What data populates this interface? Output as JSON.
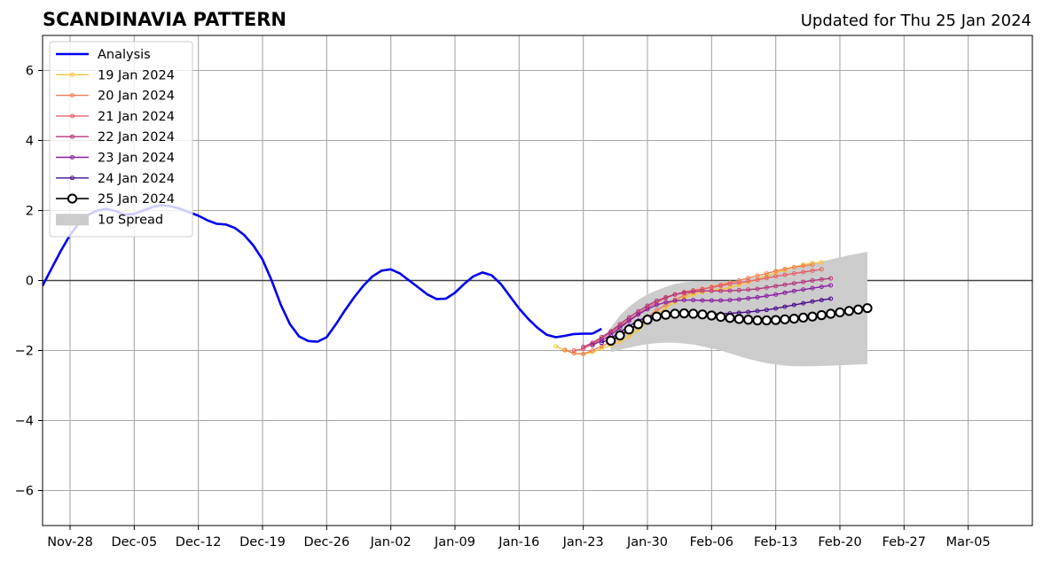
{
  "chart_data": {
    "type": "line",
    "title": "SCANDINAVIA PATTERN",
    "subtitle": "Updated for Thu 25 Jan 2024",
    "xlabel": "",
    "ylabel": "",
    "x_start": "2023-11-25",
    "xlim": [
      "2023-11-25",
      "2024-03-12"
    ],
    "ylim": [
      -7,
      7
    ],
    "y_ticks": [
      -6,
      -4,
      -2,
      0,
      2,
      4,
      6
    ],
    "y_tick_labels": [
      "−6",
      "−4",
      "−2",
      "0",
      "2",
      "4",
      "6"
    ],
    "x_ticks": [
      "2023-11-28",
      "2023-12-05",
      "2023-12-12",
      "2023-12-19",
      "2023-12-26",
      "2024-01-02",
      "2024-01-09",
      "2024-01-16",
      "2024-01-23",
      "2024-01-30",
      "2024-02-06",
      "2024-02-13",
      "2024-02-20",
      "2024-02-27",
      "2024-03-05"
    ],
    "x_tick_labels": [
      "Nov-28",
      "Dec-05",
      "Dec-12",
      "Dec-19",
      "Dec-26",
      "Jan-02",
      "Jan-09",
      "Jan-16",
      "Jan-23",
      "Jan-30",
      "Feb-06",
      "Feb-13",
      "Feb-20",
      "Feb-27",
      "Mar-05"
    ],
    "grid": true,
    "legend_position": "top-left",
    "zero_line": true,
    "analysis": {
      "name": "Analysis",
      "color": "#0000ee",
      "x": [
        "2023-11-25",
        "2023-11-26",
        "2023-11-27",
        "2023-11-28",
        "2023-11-29",
        "2023-11-30",
        "2023-12-01",
        "2023-12-02",
        "2023-12-03",
        "2023-12-04",
        "2023-12-05",
        "2023-12-06",
        "2023-12-07",
        "2023-12-08",
        "2023-12-09",
        "2023-12-10",
        "2023-12-11",
        "2023-12-12",
        "2023-12-13",
        "2023-12-14",
        "2023-12-15",
        "2023-12-16",
        "2023-12-17",
        "2023-12-18",
        "2023-12-19",
        "2023-12-20",
        "2023-12-21",
        "2023-12-22",
        "2023-12-23",
        "2023-12-24",
        "2023-12-25",
        "2023-12-26",
        "2023-12-27",
        "2023-12-28",
        "2023-12-29",
        "2023-12-30",
        "2023-12-31",
        "2024-01-01",
        "2024-01-02",
        "2024-01-03",
        "2024-01-04",
        "2024-01-05",
        "2024-01-06",
        "2024-01-07",
        "2024-01-08",
        "2024-01-09",
        "2024-01-10",
        "2024-01-11",
        "2024-01-12",
        "2024-01-13",
        "2024-01-14",
        "2024-01-15",
        "2024-01-16",
        "2024-01-17",
        "2024-01-18",
        "2024-01-19",
        "2024-01-20",
        "2024-01-21",
        "2024-01-22",
        "2024-01-23",
        "2024-01-24"
      ],
      "values": [
        -0.15,
        0.35,
        0.85,
        1.3,
        1.65,
        1.88,
        2.0,
        2.05,
        1.98,
        1.88,
        1.9,
        2.0,
        2.1,
        2.15,
        2.12,
        2.05,
        1.95,
        1.85,
        1.72,
        1.62,
        1.6,
        1.5,
        1.3,
        1.0,
        0.6,
        0.0,
        -0.7,
        -1.25,
        -1.6,
        -1.73,
        -1.75,
        -1.62,
        -1.25,
        -0.85,
        -0.48,
        -0.15,
        0.12,
        0.28,
        0.32,
        0.2,
        0.0,
        -0.2,
        -0.4,
        -0.53,
        -0.52,
        -0.35,
        -0.1,
        0.12,
        0.23,
        0.15,
        -0.1,
        -0.45,
        -0.8,
        -1.1,
        -1.35,
        -1.55,
        -1.62,
        -1.58,
        -1.53,
        -1.52,
        -1.52
      ]
    },
    "analysis_tail": {
      "x": [
        "2024-01-24",
        "2024-01-25"
      ],
      "values": [
        -1.52,
        -1.38
      ]
    },
    "series": [
      {
        "name": "19 Jan 2024",
        "color": "#f7c53a",
        "x_start": "2024-01-20",
        "values": [
          -1.88,
          -2.0,
          -2.08,
          -2.1,
          -2.05,
          -1.95,
          -1.85,
          -1.75,
          -1.6,
          -1.4,
          -1.2,
          -0.98,
          -0.78,
          -0.62,
          -0.5,
          -0.4,
          -0.33,
          -0.28,
          -0.25,
          -0.2,
          -0.13,
          -0.05,
          0.03,
          0.13,
          0.22,
          0.3,
          0.38,
          0.45,
          0.5,
          0.52
        ]
      },
      {
        "name": "20 Jan 2024",
        "color": "#f07f4f",
        "x_start": "2024-01-21",
        "values": [
          -1.98,
          -2.08,
          -2.1,
          -2.0,
          -1.88,
          -1.75,
          -1.6,
          -1.45,
          -1.25,
          -1.05,
          -0.85,
          -0.7,
          -0.55,
          -0.43,
          -0.33,
          -0.25,
          -0.18,
          -0.12,
          -0.06,
          0.0,
          0.07,
          0.14,
          0.2,
          0.27,
          0.33,
          0.38,
          0.42,
          0.45
        ]
      },
      {
        "name": "21 Jan 2024",
        "color": "#e5606a",
        "x_start": "2024-01-22",
        "values": [
          -2.0,
          -1.95,
          -1.82,
          -1.66,
          -1.48,
          -1.3,
          -1.12,
          -0.95,
          -0.78,
          -0.63,
          -0.5,
          -0.4,
          -0.33,
          -0.28,
          -0.24,
          -0.2,
          -0.15,
          -0.1,
          -0.06,
          -0.02,
          0.02,
          0.07,
          0.12,
          0.16,
          0.2,
          0.24,
          0.28,
          0.32
        ]
      },
      {
        "name": "22 Jan 2024",
        "color": "#b5367a",
        "x_start": "2024-01-23",
        "values": [
          -1.9,
          -1.78,
          -1.62,
          -1.45,
          -1.25,
          -1.05,
          -0.88,
          -0.72,
          -0.58,
          -0.48,
          -0.4,
          -0.35,
          -0.32,
          -0.3,
          -0.3,
          -0.3,
          -0.29,
          -0.28,
          -0.26,
          -0.24,
          -0.2,
          -0.16,
          -0.12,
          -0.08,
          -0.04,
          0.0,
          0.03,
          0.06
        ]
      },
      {
        "name": "23 Jan 2024",
        "color": "#8a1ea0",
        "x_start": "2024-01-24",
        "values": [
          -1.85,
          -1.72,
          -1.55,
          -1.35,
          -1.15,
          -0.97,
          -0.82,
          -0.7,
          -0.62,
          -0.58,
          -0.56,
          -0.56,
          -0.57,
          -0.57,
          -0.57,
          -0.56,
          -0.54,
          -0.51,
          -0.48,
          -0.44,
          -0.4,
          -0.35,
          -0.3,
          -0.26,
          -0.22,
          -0.18,
          -0.14
        ]
      },
      {
        "name": "24 Jan 2024",
        "color": "#4a0a8a",
        "x_start": "2024-01-25",
        "values": [
          -1.78,
          -1.65,
          -1.48,
          -1.3,
          -1.15,
          -1.03,
          -0.97,
          -0.95,
          -0.95,
          -0.96,
          -0.97,
          -0.97,
          -0.96,
          -0.95,
          -0.94,
          -0.92,
          -0.9,
          -0.87,
          -0.84,
          -0.8,
          -0.75,
          -0.7,
          -0.65,
          -0.6,
          -0.56,
          -0.52
        ]
      }
    ],
    "forecast": {
      "name": "25 Jan 2024",
      "color": "#000000",
      "x_start": "2024-01-26",
      "values": [
        -1.72,
        -1.57,
        -1.4,
        -1.25,
        -1.12,
        -1.03,
        -0.98,
        -0.95,
        -0.94,
        -0.95,
        -0.97,
        -1.0,
        -1.04,
        -1.07,
        -1.1,
        -1.12,
        -1.14,
        -1.14,
        -1.13,
        -1.11,
        -1.09,
        -1.06,
        -1.03,
        -0.99,
        -0.95,
        -0.91,
        -0.87,
        -0.83,
        -0.79
      ]
    },
    "spread": {
      "name": "1σ Spread",
      "color": "#cccccc",
      "x_start": "2024-01-26",
      "upper": [
        -1.35,
        -1.0,
        -0.75,
        -0.55,
        -0.4,
        -0.28,
        -0.18,
        -0.1,
        -0.05,
        -0.03,
        -0.02,
        -0.02,
        -0.03,
        -0.03,
        0.0,
        0.05,
        0.1,
        0.16,
        0.22,
        0.28,
        0.35,
        0.41,
        0.48,
        0.54,
        0.6,
        0.66,
        0.72,
        0.77,
        0.82
      ],
      "lower": [
        -2.05,
        -1.98,
        -1.92,
        -1.86,
        -1.82,
        -1.79,
        -1.78,
        -1.78,
        -1.8,
        -1.83,
        -1.88,
        -1.94,
        -2.0,
        -2.08,
        -2.16,
        -2.24,
        -2.3,
        -2.36,
        -2.4,
        -2.43,
        -2.45,
        -2.45,
        -2.45,
        -2.44,
        -2.43,
        -2.42,
        -2.41,
        -2.4,
        -2.39
      ]
    }
  }
}
